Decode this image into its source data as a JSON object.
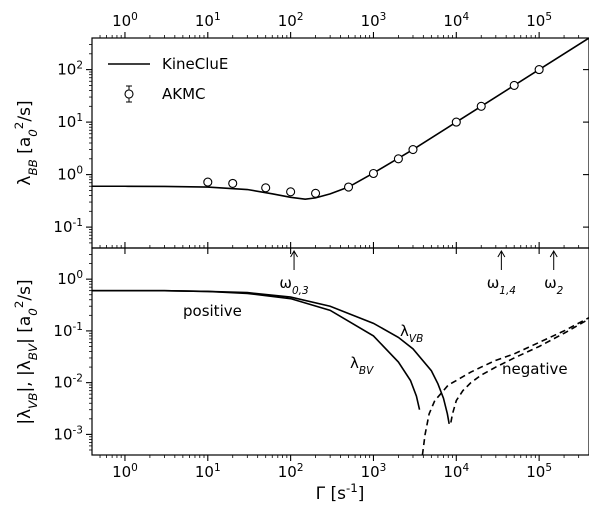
{
  "chart_data": [
    {
      "type": "line",
      "panel": "top",
      "ylabel": "λ_BB [a_0^2/s]",
      "x_scale": "log",
      "y_scale": "log",
      "xlim": [
        0.4,
        400000
      ],
      "ylim": [
        0.04,
        400
      ],
      "x_ticks": [
        1,
        10,
        100,
        1000,
        10000,
        100000
      ],
      "x_tick_labels_top": [
        "10^0",
        "10^1",
        "10^2",
        "10^3",
        "10^4",
        "10^5"
      ],
      "y_ticks": [
        0.1,
        1,
        10,
        100
      ],
      "y_tick_labels": [
        "10^-1",
        "10^0",
        "10^1",
        "10^2"
      ],
      "legend": {
        "placement": "upper-left",
        "entries": [
          "KineCluE",
          "AKMC"
        ]
      },
      "series": [
        {
          "name": "KineCluE",
          "style": "solid",
          "x": [
            0.4,
            1,
            3,
            10,
            30,
            60,
            100,
            150,
            200,
            300,
            500,
            1000,
            3000,
            10000,
            30000,
            100000,
            400000
          ],
          "y": [
            0.6,
            0.6,
            0.595,
            0.58,
            0.52,
            0.43,
            0.37,
            0.34,
            0.36,
            0.43,
            0.58,
            1.07,
            3.0,
            10.0,
            30.0,
            100.0,
            400.0
          ]
        },
        {
          "name": "AKMC",
          "style": "markers",
          "x": [
            10,
            20,
            50,
            100,
            200,
            500,
            1000,
            2000,
            3000,
            10000,
            20000,
            50000,
            100000
          ],
          "y": [
            0.72,
            0.68,
            0.56,
            0.47,
            0.44,
            0.58,
            1.05,
            2.0,
            3.0,
            10.0,
            20.0,
            50.0,
            100.0
          ]
        }
      ]
    },
    {
      "type": "line",
      "panel": "bottom",
      "xlabel": "Γ [s^-1]",
      "ylabel": "|λ_VB|, |λ_BV| [a_0^2/s]",
      "x_scale": "log",
      "y_scale": "log",
      "xlim": [
        0.4,
        400000
      ],
      "ylim": [
        0.0004,
        4
      ],
      "x_ticks": [
        1,
        10,
        100,
        1000,
        10000,
        100000
      ],
      "x_tick_labels": [
        "10^0",
        "10^1",
        "10^2",
        "10^3",
        "10^4",
        "10^5"
      ],
      "y_ticks": [
        0.001,
        0.01,
        0.1,
        1
      ],
      "y_tick_labels": [
        "10^-3",
        "10^-2",
        "10^-1",
        "10^0"
      ],
      "series": [
        {
          "name": "λ_VB",
          "style": "solid",
          "x": [
            0.4,
            3,
            10,
            30,
            100,
            300,
            1000,
            2000,
            3000,
            5000,
            6000,
            7000,
            7800,
            8200
          ],
          "y": [
            0.6,
            0.6,
            0.58,
            0.55,
            0.45,
            0.3,
            0.14,
            0.075,
            0.045,
            0.017,
            0.0095,
            0.005,
            0.0025,
            0.0016
          ]
        },
        {
          "name": "λ_BV",
          "style": "solid",
          "x": [
            0.4,
            3,
            10,
            30,
            100,
            300,
            1000,
            2000,
            2800,
            3300,
            3600
          ],
          "y": [
            0.6,
            0.6,
            0.58,
            0.53,
            0.42,
            0.25,
            0.08,
            0.025,
            0.011,
            0.0055,
            0.003
          ]
        },
        {
          "name": "λ_VB (negative)",
          "style": "dashed",
          "x": [
            8600,
            9000,
            10000,
            12000,
            15000,
            20000,
            30000,
            50000,
            100000,
            200000,
            400000
          ],
          "y": [
            0.0017,
            0.0025,
            0.0045,
            0.007,
            0.01,
            0.014,
            0.02,
            0.03,
            0.05,
            0.09,
            0.17
          ]
        },
        {
          "name": "λ_BV (negative)",
          "style": "dashed",
          "x": [
            3900,
            4200,
            4700,
            5500,
            7000,
            8000,
            10000,
            15000,
            20000,
            30000,
            50000,
            100000,
            200000,
            400000
          ],
          "y": [
            0.0004,
            0.001,
            0.0025,
            0.0045,
            0.007,
            0.009,
            0.011,
            0.016,
            0.02,
            0.027,
            0.036,
            0.06,
            0.1,
            0.18
          ]
        }
      ],
      "annotations": {
        "positive": "positive",
        "negative": "negative",
        "label_vb": "λ_VB",
        "label_bv": "λ_BV",
        "arrows": [
          {
            "text": "ω_0,3",
            "x": 110
          },
          {
            "text": "ω_1,4",
            "x": 35000
          },
          {
            "text": "ω_2",
            "x": 150000
          }
        ]
      }
    }
  ]
}
